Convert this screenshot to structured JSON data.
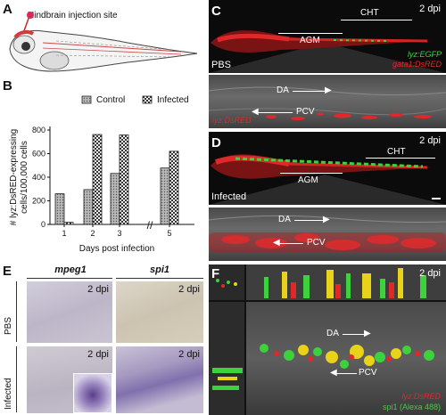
{
  "panel_labels": {
    "a": "A",
    "b": "B",
    "c": "C",
    "d": "D",
    "e": "E",
    "f": "F"
  },
  "panel_a": {
    "annotation": "Hindbrain injection site"
  },
  "panel_c": {
    "timepoint": "2 dpi",
    "region_cht": "CHT",
    "region_agm": "AGM",
    "condition": "PBS",
    "legend_line1": "lyz:EGFP",
    "legend_line2": "gata1:DsRED",
    "zoom_label_da": "DA",
    "zoom_label_pcv": "PCV",
    "zoom_legend": "lyz:DsRED"
  },
  "panel_d": {
    "timepoint": "2 dpi",
    "region_cht": "CHT",
    "region_agm": "AGM",
    "condition": "Infected",
    "zoom_label_da": "DA",
    "zoom_label_pcv": "PCV"
  },
  "panel_e": {
    "col1": "mpeg1",
    "col2": "spi1",
    "row1": "PBS",
    "row2": "Infected",
    "timepoint": "2 dpi"
  },
  "panel_f": {
    "timepoint": "2 dpi",
    "label_da": "DA",
    "label_pcv": "PCV",
    "legend_line1": "lyz:DsRED",
    "legend_line2": "spi1 (Alexa 488)"
  },
  "colors": {
    "control_bar": "#9a9a9a",
    "infected_bar": "#f2f2f2",
    "egfp": "#3ed13e",
    "dsred": "#e0282a"
  },
  "chart_data": {
    "type": "bar",
    "categories": [
      "1",
      "2",
      "3",
      "5"
    ],
    "series": [
      {
        "name": "Control",
        "values": [
          260,
          295,
          432,
          478
        ]
      },
      {
        "name": "Infected",
        "values": [
          18,
          762,
          758,
          620
        ]
      }
    ],
    "ylabel": "# lyz:DsRED-expressing cells/100,000 cells",
    "xlabel": "Days post infection",
    "ylim": [
      0,
      800
    ],
    "yticks": [
      "0",
      "200",
      "400",
      "600",
      "800"
    ],
    "grid": false,
    "legend_position": "top-right"
  }
}
